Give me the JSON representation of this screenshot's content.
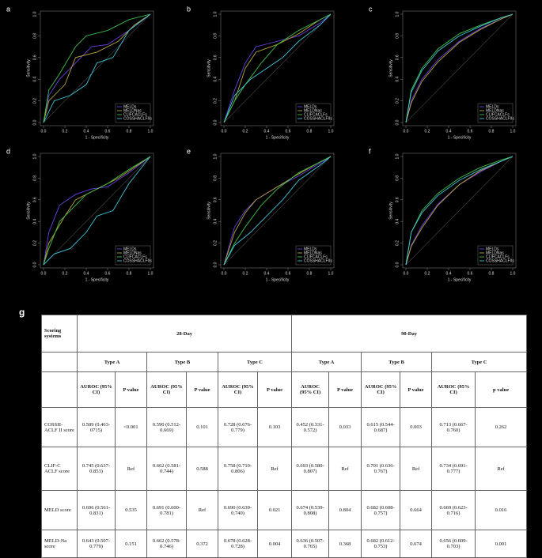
{
  "chart_data": [
    {
      "type": "line",
      "label": "a",
      "xlabel": "1 - Specificity",
      "ylabel": "Sensitivity",
      "xlim": [
        0,
        1
      ],
      "ylim": [
        0,
        1
      ],
      "xticks": [
        {
          "value": 0,
          "label": "0.0"
        },
        {
          "value": 0.2,
          "label": "0.2"
        },
        {
          "value": 0.4,
          "label": "0.4"
        },
        {
          "value": 0.6,
          "label": "0.6"
        },
        {
          "value": 0.8,
          "label": "0.8"
        },
        {
          "value": 1,
          "label": "1.0"
        }
      ],
      "yticks": [
        {
          "value": 0,
          "label": "0.0"
        },
        {
          "value": 0.2,
          "label": "0.2"
        },
        {
          "value": 0.4,
          "label": "0.4"
        },
        {
          "value": 0.6,
          "label": "0.6"
        },
        {
          "value": 0.8,
          "label": "0.8"
        },
        {
          "value": 1,
          "label": "1.0"
        }
      ],
      "legend": "bottom-right",
      "series": [
        {
          "name": "MELDs",
          "color": "#6b3fe0",
          "x": [
            0,
            0.05,
            0.15,
            0.3,
            0.45,
            0.6,
            0.8,
            1
          ],
          "values": [
            0,
            0.25,
            0.4,
            0.55,
            0.7,
            0.72,
            0.85,
            1
          ]
        },
        {
          "name": "MELDNas",
          "color": "#b8a43c",
          "x": [
            0,
            0.05,
            0.2,
            0.3,
            0.5,
            0.7,
            0.85,
            1
          ],
          "values": [
            0,
            0.2,
            0.35,
            0.6,
            0.65,
            0.75,
            0.9,
            1
          ]
        },
        {
          "name": "CLIFCACLFs",
          "color": "#3cc24a",
          "x": [
            0,
            0.05,
            0.15,
            0.3,
            0.4,
            0.6,
            0.8,
            1
          ],
          "values": [
            0,
            0.3,
            0.45,
            0.7,
            0.8,
            0.85,
            0.95,
            1
          ]
        },
        {
          "name": "COSSHACLFIIs",
          "color": "#3fc4dc",
          "x": [
            0,
            0.1,
            0.25,
            0.4,
            0.5,
            0.65,
            0.8,
            1
          ],
          "values": [
            0,
            0.2,
            0.25,
            0.35,
            0.55,
            0.6,
            0.85,
            1
          ]
        }
      ]
    },
    {
      "type": "line",
      "label": "b",
      "xlabel": "1 - Specificity",
      "ylabel": "Sensitivity",
      "xlim": [
        0,
        1
      ],
      "ylim": [
        0,
        1
      ],
      "xticks": [
        {
          "value": 0,
          "label": "0.0"
        },
        {
          "value": 0.2,
          "label": "0.2"
        },
        {
          "value": 0.4,
          "label": "0.4"
        },
        {
          "value": 0.6,
          "label": "0.6"
        },
        {
          "value": 0.8,
          "label": "0.8"
        },
        {
          "value": 1,
          "label": "1.0"
        }
      ],
      "yticks": [
        {
          "value": 0,
          "label": "0.0"
        },
        {
          "value": 0.2,
          "label": "0.2"
        },
        {
          "value": 0.4,
          "label": "0.4"
        },
        {
          "value": 0.6,
          "label": "0.6"
        },
        {
          "value": 0.8,
          "label": "0.8"
        },
        {
          "value": 1,
          "label": "1.0"
        }
      ],
      "legend": "bottom-right",
      "series": [
        {
          "name": "MELDs",
          "color": "#6b3fe0",
          "x": [
            0,
            0.1,
            0.2,
            0.3,
            0.5,
            0.7,
            0.9,
            1
          ],
          "values": [
            0,
            0.3,
            0.55,
            0.7,
            0.75,
            0.8,
            0.92,
            1
          ]
        },
        {
          "name": "MELDNas",
          "color": "#b8a43c",
          "x": [
            0,
            0.1,
            0.2,
            0.3,
            0.5,
            0.7,
            0.9,
            1
          ],
          "values": [
            0,
            0.2,
            0.5,
            0.65,
            0.72,
            0.82,
            0.95,
            1
          ]
        },
        {
          "name": "CLIFCACLFs",
          "color": "#3cc24a",
          "x": [
            0,
            0.1,
            0.2,
            0.35,
            0.5,
            0.7,
            0.9,
            1
          ],
          "values": [
            0,
            0.2,
            0.35,
            0.55,
            0.72,
            0.85,
            0.95,
            1
          ]
        },
        {
          "name": "COSSHACLFIIs",
          "color": "#3fc4dc",
          "x": [
            0,
            0.1,
            0.25,
            0.4,
            0.55,
            0.7,
            0.9,
            1
          ],
          "values": [
            0,
            0.25,
            0.4,
            0.5,
            0.6,
            0.75,
            0.9,
            1
          ]
        }
      ]
    },
    {
      "type": "line",
      "label": "c",
      "xlabel": "1 - Specificity",
      "ylabel": "Sensitivity",
      "xlim": [
        0,
        1
      ],
      "ylim": [
        0,
        1
      ],
      "xticks": [
        {
          "value": 0,
          "label": "0.0"
        },
        {
          "value": 0.2,
          "label": "0.2"
        },
        {
          "value": 0.4,
          "label": "0.4"
        },
        {
          "value": 0.6,
          "label": "0.6"
        },
        {
          "value": 0.8,
          "label": "0.8"
        },
        {
          "value": 1,
          "label": "1.0"
        }
      ],
      "yticks": [
        {
          "value": 0,
          "label": "0.0"
        },
        {
          "value": 0.2,
          "label": "0.2"
        },
        {
          "value": 0.4,
          "label": "0.4"
        },
        {
          "value": 0.6,
          "label": "0.6"
        },
        {
          "value": 0.8,
          "label": "0.8"
        },
        {
          "value": 1,
          "label": "1.0"
        }
      ],
      "legend": "bottom-right",
      "series": [
        {
          "name": "MELDs",
          "color": "#6b3fe0",
          "x": [
            0,
            0.05,
            0.15,
            0.3,
            0.5,
            0.7,
            0.9,
            1
          ],
          "values": [
            0,
            0.2,
            0.4,
            0.58,
            0.75,
            0.87,
            0.96,
            1
          ]
        },
        {
          "name": "MELDNas",
          "color": "#b8a43c",
          "x": [
            0,
            0.05,
            0.15,
            0.3,
            0.5,
            0.7,
            0.9,
            1
          ],
          "values": [
            0,
            0.18,
            0.38,
            0.56,
            0.74,
            0.86,
            0.96,
            1
          ]
        },
        {
          "name": "CLIFCACLFs",
          "color": "#3cc24a",
          "x": [
            0,
            0.05,
            0.15,
            0.3,
            0.5,
            0.7,
            0.9,
            1
          ],
          "values": [
            0,
            0.3,
            0.5,
            0.68,
            0.82,
            0.9,
            0.97,
            1
          ]
        },
        {
          "name": "COSSHACLFIIs",
          "color": "#3fc4dc",
          "x": [
            0,
            0.05,
            0.15,
            0.3,
            0.5,
            0.7,
            0.9,
            1
          ],
          "values": [
            0,
            0.28,
            0.48,
            0.66,
            0.8,
            0.89,
            0.97,
            1
          ]
        }
      ]
    },
    {
      "type": "line",
      "label": "d",
      "xlabel": "1 - Specificity",
      "ylabel": "Sensitivity",
      "xlim": [
        0,
        1
      ],
      "ylim": [
        0,
        1
      ],
      "xticks": [
        {
          "value": 0,
          "label": "0.0"
        },
        {
          "value": 0.2,
          "label": "0.2"
        },
        {
          "value": 0.4,
          "label": "0.4"
        },
        {
          "value": 0.6,
          "label": "0.6"
        },
        {
          "value": 0.8,
          "label": "0.8"
        },
        {
          "value": 1,
          "label": "1.0"
        }
      ],
      "yticks": [
        {
          "value": 0,
          "label": "0.0"
        },
        {
          "value": 0.2,
          "label": "0.2"
        },
        {
          "value": 0.4,
          "label": "0.4"
        },
        {
          "value": 0.6,
          "label": "0.6"
        },
        {
          "value": 0.8,
          "label": "0.8"
        },
        {
          "value": 1,
          "label": "1.0"
        }
      ],
      "legend": "bottom-right",
      "series": [
        {
          "name": "MELDs",
          "color": "#6b3fe0",
          "x": [
            0,
            0.05,
            0.15,
            0.3,
            0.45,
            0.6,
            0.8,
            1
          ],
          "values": [
            0,
            0.3,
            0.55,
            0.65,
            0.7,
            0.72,
            0.85,
            1
          ]
        },
        {
          "name": "MELDNas",
          "color": "#b8a43c",
          "x": [
            0,
            0.05,
            0.2,
            0.3,
            0.5,
            0.7,
            0.85,
            1
          ],
          "values": [
            0,
            0.2,
            0.45,
            0.6,
            0.7,
            0.8,
            0.9,
            1
          ]
        },
        {
          "name": "CLIFCACLFs",
          "color": "#3cc24a",
          "x": [
            0,
            0.05,
            0.15,
            0.3,
            0.4,
            0.6,
            0.8,
            1
          ],
          "values": [
            0,
            0.15,
            0.4,
            0.55,
            0.65,
            0.75,
            0.88,
            1
          ]
        },
        {
          "name": "COSSHACLFIIs",
          "color": "#3fc4dc",
          "x": [
            0,
            0.1,
            0.25,
            0.4,
            0.5,
            0.65,
            0.8,
            1
          ],
          "values": [
            0,
            0.1,
            0.15,
            0.3,
            0.45,
            0.5,
            0.75,
            1
          ]
        }
      ]
    },
    {
      "type": "line",
      "label": "e",
      "xlabel": "1 - Specificity",
      "ylabel": "Sensitivity",
      "xlim": [
        0,
        1
      ],
      "ylim": [
        0,
        1
      ],
      "xticks": [
        {
          "value": 0,
          "label": "0.0"
        },
        {
          "value": 0.2,
          "label": "0.2"
        },
        {
          "value": 0.4,
          "label": "0.4"
        },
        {
          "value": 0.6,
          "label": "0.6"
        },
        {
          "value": 0.8,
          "label": "0.8"
        },
        {
          "value": 1,
          "label": "1.0"
        }
      ],
      "yticks": [
        {
          "value": 0,
          "label": "0.0"
        },
        {
          "value": 0.2,
          "label": "0.2"
        },
        {
          "value": 0.4,
          "label": "0.4"
        },
        {
          "value": 0.6,
          "label": "0.6"
        },
        {
          "value": 0.8,
          "label": "0.8"
        },
        {
          "value": 1,
          "label": "1.0"
        }
      ],
      "legend": "bottom-right",
      "series": [
        {
          "name": "MELDs",
          "color": "#6b3fe0",
          "x": [
            0,
            0.1,
            0.2,
            0.3,
            0.5,
            0.7,
            0.9,
            1
          ],
          "values": [
            0,
            0.35,
            0.5,
            0.6,
            0.72,
            0.82,
            0.94,
            1
          ]
        },
        {
          "name": "MELDNas",
          "color": "#b8a43c",
          "x": [
            0,
            0.1,
            0.2,
            0.3,
            0.5,
            0.7,
            0.9,
            1
          ],
          "values": [
            0,
            0.3,
            0.48,
            0.6,
            0.72,
            0.84,
            0.95,
            1
          ]
        },
        {
          "name": "CLIFCACLFs",
          "color": "#3cc24a",
          "x": [
            0,
            0.1,
            0.2,
            0.35,
            0.5,
            0.7,
            0.9,
            1
          ],
          "values": [
            0,
            0.2,
            0.35,
            0.55,
            0.7,
            0.85,
            0.95,
            1
          ]
        },
        {
          "name": "COSSHACLFIIs",
          "color": "#3fc4dc",
          "x": [
            0,
            0.1,
            0.25,
            0.4,
            0.55,
            0.7,
            0.9,
            1
          ],
          "values": [
            0,
            0.18,
            0.3,
            0.45,
            0.6,
            0.78,
            0.92,
            1
          ]
        }
      ]
    },
    {
      "type": "line",
      "label": "f",
      "xlabel": "1 - Specificity",
      "ylabel": "Sensitivity",
      "xlim": [
        0,
        1
      ],
      "ylim": [
        0,
        1
      ],
      "xticks": [
        {
          "value": 0,
          "label": "0.0"
        },
        {
          "value": 0.2,
          "label": "0.2"
        },
        {
          "value": 0.4,
          "label": "0.4"
        },
        {
          "value": 0.6,
          "label": "0.6"
        },
        {
          "value": 0.8,
          "label": "0.8"
        },
        {
          "value": 1,
          "label": "1.0"
        }
      ],
      "yticks": [
        {
          "value": 0,
          "label": "0.0"
        },
        {
          "value": 0.2,
          "label": "0.2"
        },
        {
          "value": 0.4,
          "label": "0.4"
        },
        {
          "value": 0.6,
          "label": "0.6"
        },
        {
          "value": 0.8,
          "label": "0.8"
        },
        {
          "value": 1,
          "label": "1.0"
        }
      ],
      "legend": "bottom-right",
      "series": [
        {
          "name": "MELDs",
          "color": "#6b3fe0",
          "x": [
            0,
            0.05,
            0.15,
            0.3,
            0.5,
            0.7,
            0.9,
            1
          ],
          "values": [
            0,
            0.18,
            0.36,
            0.56,
            0.74,
            0.86,
            0.96,
            1
          ]
        },
        {
          "name": "MELDNas",
          "color": "#b8a43c",
          "x": [
            0,
            0.05,
            0.15,
            0.3,
            0.5,
            0.7,
            0.9,
            1
          ],
          "values": [
            0,
            0.17,
            0.34,
            0.55,
            0.74,
            0.87,
            0.96,
            1
          ]
        },
        {
          "name": "CLIFCACLFs",
          "color": "#3cc24a",
          "x": [
            0,
            0.05,
            0.15,
            0.3,
            0.5,
            0.7,
            0.9,
            1
          ],
          "values": [
            0,
            0.3,
            0.5,
            0.66,
            0.8,
            0.9,
            0.97,
            1
          ]
        },
        {
          "name": "COSSHACLFIIs",
          "color": "#3fc4dc",
          "x": [
            0,
            0.05,
            0.15,
            0.3,
            0.5,
            0.7,
            0.9,
            1
          ],
          "values": [
            0,
            0.3,
            0.48,
            0.64,
            0.78,
            0.88,
            0.96,
            1
          ]
        }
      ]
    }
  ],
  "table": {
    "label": "g",
    "corner": "Scoring systems",
    "periods": [
      "28-Day",
      "90-Day"
    ],
    "types": [
      "Type A",
      "Type B",
      "Type C",
      "Type A",
      "Type B",
      "Type C"
    ],
    "subheaders": [
      "AUROC (95% CI)",
      "P value",
      "AUROC (95% CI)",
      "P value",
      "AUROC (95% CI)",
      "P value",
      "AUROC (95% CI)",
      "P value",
      "AUROC (95% CI)",
      "P value",
      "AUROC (95% CI)",
      "p value"
    ],
    "rows": [
      {
        "name": "COSSH-ACLF II score",
        "cells": [
          "0.589 (0.463-0715)",
          "<0.001",
          "0.590 (0.512-0.669)",
          "0.101",
          "0.728 (0.676-0.779)",
          "0.103",
          "0.452 (0.331-0.572)",
          "0.033",
          "0.615 (0.544-0.687)",
          "0.003",
          "0.713 (0.667-0.760)",
          "0.262"
        ]
      },
      {
        "name": "CLIF-C ACLF score",
        "cells": [
          "0.745 (0.637-0.853)",
          "Ref",
          "0.662 (0.581-0.744)",
          "0.588",
          "0.758 (0.710-0.806)",
          "Ref",
          "0.693 (0.580-0.807)",
          "Ref",
          "0.701 (0.636-0.767)",
          "Ref",
          "0.734 (0.691-0.777)",
          "Ref"
        ]
      },
      {
        "name": "MELD score",
        "cells": [
          "0.696 (0.561-0.831)",
          "0.535",
          "0.691 (0.600-0.781)",
          "Ref",
          "0.690 (0.639-0.740)",
          "0.021",
          "0.674 (0.539-0.808)",
          "0.804",
          "0.682 (0.608-0.757)",
          "0.664",
          "0.669 (0.623-0.716)",
          "0.016"
        ]
      },
      {
        "name": "MELD-Na score",
        "cells": [
          "0.643 (0.507-0.779)",
          "0.151",
          "0.662 (0.578-0.746)",
          "0.372",
          "0.678 (0.628-0.728)",
          "0.004",
          "0.636 (0.507-0.765)",
          "0.368",
          "0.682 (0.612-0.753)",
          "0.674",
          "0.656 (0.609-0.703)",
          "0.001"
        ]
      }
    ]
  }
}
